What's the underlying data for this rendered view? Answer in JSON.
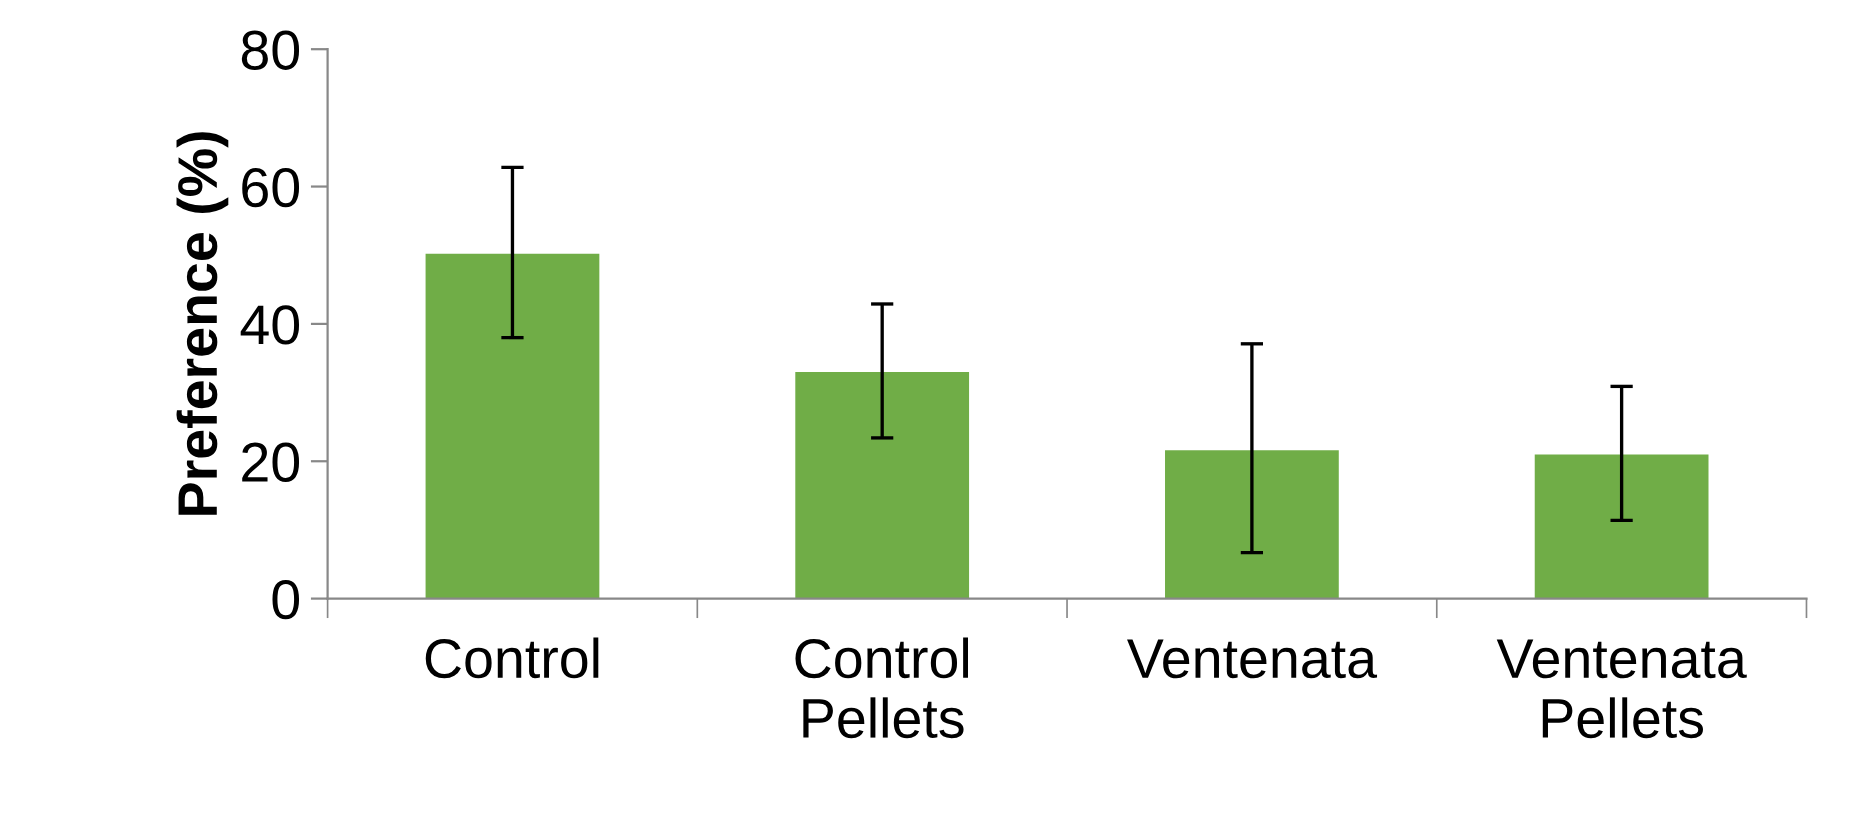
{
  "chart_data": {
    "type": "bar",
    "ylabel": "Preference (%)",
    "categories": [
      "Control",
      "Control\nPellets",
      "Ventenata",
      "Ventenata\nPellets"
    ],
    "values": [
      50.2,
      33.0,
      21.6,
      21.0
    ],
    "errors": [
      [
        38.0,
        62.8
      ],
      [
        23.4,
        42.9
      ],
      [
        6.7,
        37.1
      ],
      [
        11.4,
        30.9
      ]
    ],
    "color": "#70ad47",
    "ylim": [
      0,
      80
    ],
    "yticks": [
      0,
      20,
      40,
      60,
      80
    ],
    "grid": false,
    "legend": false
  }
}
